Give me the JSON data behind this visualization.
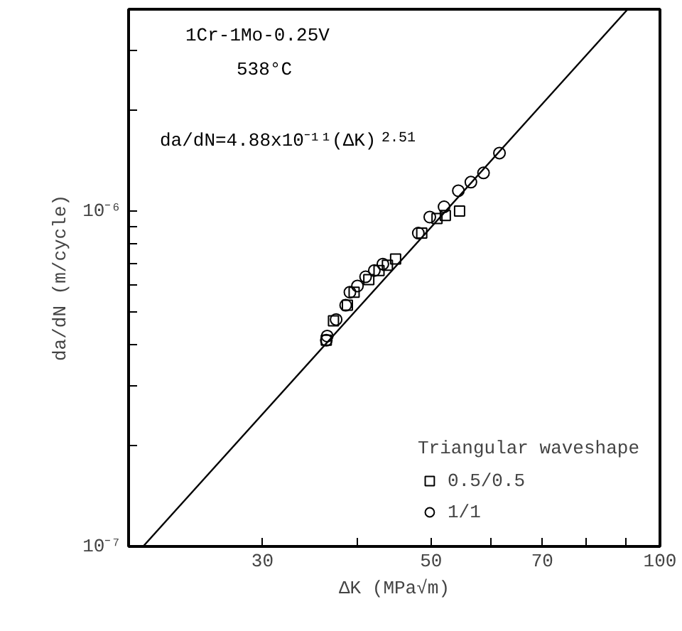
{
  "chart_data": {
    "type": "scatter",
    "xlabel": "ΔK (MPa√m)",
    "ylabel": "da/dN (m/cycle)",
    "annotations": [
      "1Cr-1Mo-0.25V",
      "538°C",
      "da/dN=4.88x10⁻¹¹(ΔK)$^{2.51}$"
    ],
    "log": "xy",
    "xlim": [
      20,
      100
    ],
    "ylim": [
      1e-07,
      4e-06
    ],
    "xticks": [
      30,
      {
        "value": 40,
        "label": null
      },
      50,
      {
        "value": 60,
        "label": null
      },
      70,
      {
        "value": 80,
        "label": null
      },
      {
        "value": 90,
        "label": null
      },
      100
    ],
    "yticks": [
      {
        "value": 1e-07,
        "label": "10⁻⁷"
      },
      {
        "value": 2e-07,
        "label": null
      },
      {
        "value": 3e-07,
        "label": null
      },
      {
        "value": 4e-07,
        "label": null
      },
      {
        "value": 5e-07,
        "label": null
      },
      {
        "value": 6e-07,
        "label": null
      },
      {
        "value": 7e-07,
        "label": null
      },
      {
        "value": 8e-07,
        "label": null
      },
      {
        "value": 9e-07,
        "label": null
      },
      {
        "value": 1e-06,
        "label": "10⁻⁶"
      },
      {
        "value": 2e-06,
        "label": null
      },
      {
        "value": 3e-06,
        "label": null
      },
      {
        "value": 4e-06,
        "label": null
      }
    ],
    "grid": false,
    "legend": "bottom right",
    "legend_title": "Triangular waveshape",
    "series": [
      {
        "name": "0.5/0.5",
        "color": "#000000",
        "marker": "square",
        "x": [
          54.5,
          52.2,
          50.9,
          48.6,
          44.9,
          43.8,
          42.7,
          41.4,
          39.6,
          38.8,
          37.2,
          36.4
        ],
        "values": [
          1e-06,
          9.7e-07,
          9.5e-07,
          8.6e-07,
          7.2e-07,
          6.9e-07,
          6.65e-07,
          6.25e-07,
          5.73e-07,
          5.24e-07,
          4.71e-07,
          4.12e-07
        ]
      },
      {
        "name": "1/1",
        "color": "#000000",
        "marker": "circle",
        "x": [
          61.5,
          58.6,
          56.4,
          54.3,
          52.0,
          49.8,
          48.1,
          43.2,
          42.1,
          41.0,
          40.0,
          39.1,
          38.6,
          37.5,
          36.5,
          36.4
        ],
        "values": [
          1.49e-06,
          1.3e-06,
          1.22e-06,
          1.15e-06,
          1.03e-06,
          9.6e-07,
          8.6e-07,
          6.95e-07,
          6.65e-07,
          6.37e-07,
          5.98e-07,
          5.73e-07,
          5.24e-07,
          4.75e-07,
          4.24e-07,
          4.12e-07
        ]
      },
      {
        "type": "line",
        "color": "#000000",
        "line_style": "solid",
        "marker": "none",
        "x": [
          20.9,
          90.7
        ],
        "values": [
          1e-07,
          4e-06
        ]
      }
    ]
  }
}
